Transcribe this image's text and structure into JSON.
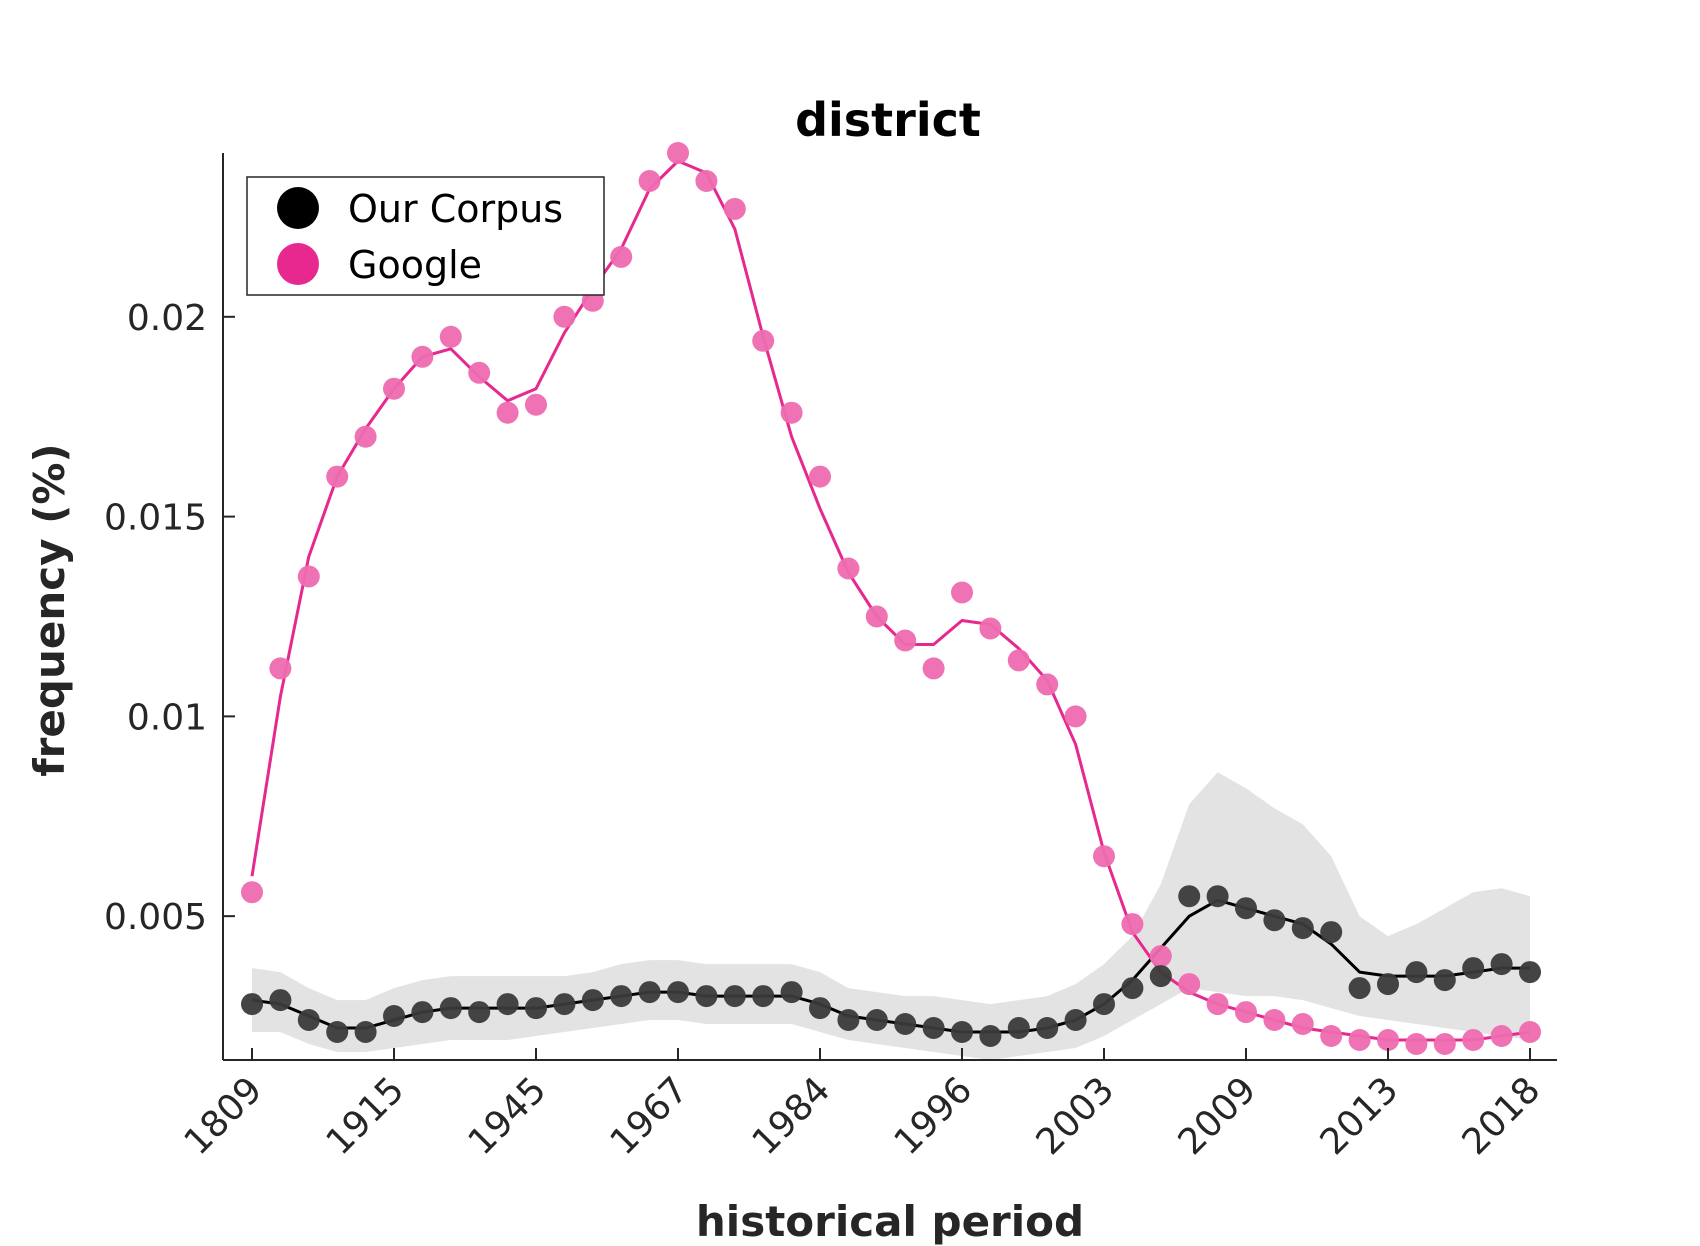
{
  "chart_data": {
    "type": "line",
    "title": "district",
    "xlabel": "historical period",
    "ylabel": "frequency (%)",
    "x_tick_labels": [
      "1809",
      "1915",
      "1945",
      "1967",
      "1984",
      "1996",
      "2003",
      "2009",
      "2013",
      "2018"
    ],
    "y_ticks": [
      0.005,
      0.01,
      0.015,
      0.02
    ],
    "y_tick_labels": [
      "0.005",
      "0.01",
      "0.015",
      "0.02"
    ],
    "ylim": [
      0.0014,
      0.0241
    ],
    "grid": false,
    "legend_position": "top-left",
    "colors": {
      "our_corpus": "#000000",
      "google": "#e6288f",
      "band": "#d9d9d9"
    },
    "series": [
      {
        "name": "Our Corpus",
        "points": [
          0.0028,
          0.0029,
          0.0024,
          0.0021,
          0.0021,
          0.0025,
          0.0026,
          0.0027,
          0.0026,
          0.0028,
          0.0027,
          0.0028,
          0.0029,
          0.003,
          0.0031,
          0.0031,
          0.003,
          0.003,
          0.003,
          0.0031,
          0.0027,
          0.0024,
          0.0024,
          0.0023,
          0.0022,
          0.0021,
          0.002,
          0.0022,
          0.0022,
          0.0024,
          0.0028,
          0.0032,
          0.0035,
          0.0055,
          0.0055,
          0.0052,
          0.0049,
          0.0047,
          0.0046,
          0.0032,
          0.0033,
          0.0036,
          0.0034,
          0.0037,
          0.0038,
          0.0036
        ],
        "smoothed": [
          0.0029,
          0.0028,
          0.0025,
          0.0022,
          0.0022,
          0.0024,
          0.0026,
          0.0027,
          0.0027,
          0.0027,
          0.0027,
          0.0028,
          0.0029,
          0.003,
          0.0031,
          0.0031,
          0.003,
          0.003,
          0.003,
          0.003,
          0.0028,
          0.0025,
          0.0024,
          0.0023,
          0.0022,
          0.0021,
          0.0021,
          0.0021,
          0.0022,
          0.0024,
          0.0028,
          0.0034,
          0.0042,
          0.005,
          0.0054,
          0.0052,
          0.005,
          0.0048,
          0.0043,
          0.0036,
          0.0035,
          0.0035,
          0.0035,
          0.0036,
          0.0037,
          0.0037
        ],
        "band_upper": [
          0.0037,
          0.0036,
          0.0032,
          0.0029,
          0.0029,
          0.0032,
          0.0034,
          0.0035,
          0.0035,
          0.0035,
          0.0035,
          0.0035,
          0.0036,
          0.0038,
          0.0039,
          0.0039,
          0.0038,
          0.0038,
          0.0038,
          0.0038,
          0.0036,
          0.0032,
          0.0031,
          0.003,
          0.003,
          0.0029,
          0.0028,
          0.0029,
          0.003,
          0.0033,
          0.0038,
          0.0045,
          0.0058,
          0.0078,
          0.0086,
          0.0082,
          0.0077,
          0.0073,
          0.0065,
          0.005,
          0.0045,
          0.0048,
          0.0052,
          0.0056,
          0.0057,
          0.0055
        ],
        "band_lower": [
          0.0021,
          0.0021,
          0.0018,
          0.0016,
          0.0016,
          0.0017,
          0.0018,
          0.0019,
          0.0019,
          0.0019,
          0.002,
          0.0021,
          0.0022,
          0.0023,
          0.0024,
          0.0024,
          0.0023,
          0.0023,
          0.0023,
          0.0023,
          0.0021,
          0.0019,
          0.0018,
          0.0017,
          0.0016,
          0.0015,
          0.0014,
          0.0015,
          0.0016,
          0.0017,
          0.002,
          0.0024,
          0.0028,
          0.0032,
          0.0031,
          0.003,
          0.003,
          0.0029,
          0.0027,
          0.0025,
          0.0024,
          0.0023,
          0.0022,
          0.0021,
          0.002,
          0.0019
        ]
      },
      {
        "name": "Google",
        "points": [
          0.0056,
          0.0112,
          0.0135,
          0.016,
          0.017,
          0.0182,
          0.019,
          0.0195,
          0.0186,
          0.0176,
          0.0178,
          0.02,
          0.0204,
          0.0215,
          0.0234,
          0.0241,
          0.0234,
          0.0227,
          0.0194,
          0.0176,
          0.016,
          0.0137,
          0.0125,
          0.0119,
          0.0112,
          0.0131,
          0.0122,
          0.0114,
          0.0108,
          0.01,
          0.0065,
          0.0048,
          0.004,
          0.0033,
          0.0028,
          0.0026,
          0.0024,
          0.0023,
          0.002,
          0.0019,
          0.0019,
          0.0018,
          0.0018,
          0.0019,
          0.002,
          0.0021
        ],
        "smoothed": [
          0.006,
          0.0105,
          0.014,
          0.016,
          0.0172,
          0.0182,
          0.019,
          0.0192,
          0.0185,
          0.0179,
          0.0182,
          0.0196,
          0.0207,
          0.0217,
          0.0232,
          0.0239,
          0.0236,
          0.0222,
          0.0195,
          0.017,
          0.0152,
          0.0136,
          0.0125,
          0.0118,
          0.0118,
          0.0124,
          0.0123,
          0.0117,
          0.0109,
          0.0093,
          0.0066,
          0.0046,
          0.0036,
          0.0031,
          0.0028,
          0.0026,
          0.0024,
          0.0022,
          0.0021,
          0.002,
          0.0019,
          0.0019,
          0.0019,
          0.0019,
          0.002,
          0.0021
        ]
      }
    ]
  }
}
